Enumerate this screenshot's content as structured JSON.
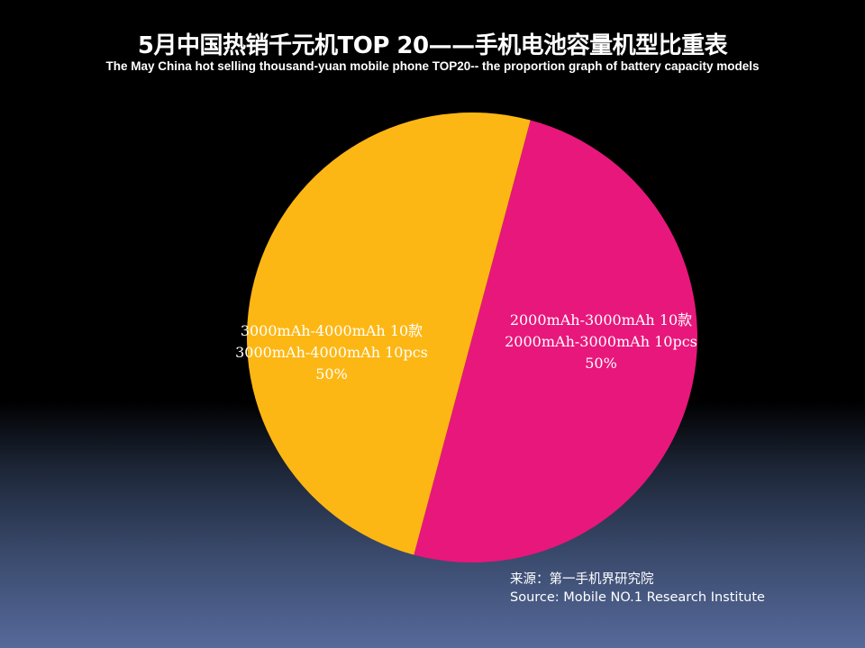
{
  "header": {
    "title": "5月中国热销千元机TOP 20——手机电池容量机型比重表",
    "subtitle": "The May China hot selling thousand-yuan mobile phone TOP20-- the proportion graph of battery capacity models"
  },
  "chart_data": {
    "type": "pie",
    "title": "5月中国热销千元机TOP 20——手机电池容量机型比重表",
    "subtitle": "The May China hot selling thousand-yuan mobile phone TOP20-- the proportion graph of battery capacity models",
    "slices": [
      {
        "label_cn": "2000mAh-3000mAh 10款",
        "label_en": "2000mAh-3000mAh 10pcs",
        "value": 10,
        "percent_label": "50%",
        "color": "#E8177C"
      },
      {
        "label_cn": "3000mAh-4000mAh 10款",
        "label_en": "3000mAh-4000mAh 10pcs",
        "value": 10,
        "percent_label": "50%",
        "color": "#FDB714"
      }
    ],
    "legend": "none"
  },
  "source": {
    "cn": "来源：第一手机界研究院",
    "en": "Source: Mobile NO.1 Research Institute"
  }
}
